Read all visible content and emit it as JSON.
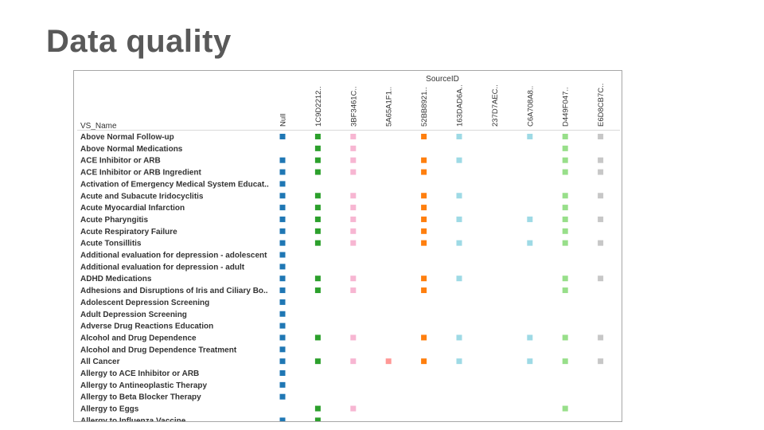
{
  "slide": {
    "title": "Data quality"
  },
  "chart_data": {
    "type": "heatmap",
    "column_header": "SourceID",
    "row_header": "VS_Name",
    "columns": [
      {
        "label": "Null",
        "color": "#1f77b4"
      },
      {
        "label": "1C9D2212..",
        "color": "#2ca02c"
      },
      {
        "label": "3BF3461C..",
        "color": "#f7b6d2"
      },
      {
        "label": "5A65A1F1..",
        "color": "#ff9896"
      },
      {
        "label": "52BB8921..",
        "color": "#ff7f0e"
      },
      {
        "label": "163DAD6A..",
        "color": "#9edae5"
      },
      {
        "label": "237D7AEC..",
        "color": "#c5b0d5"
      },
      {
        "label": "C6A708A8..",
        "color": "#9edae5"
      },
      {
        "label": "D449F047..",
        "color": "#98df8a"
      },
      {
        "label": "E6D8CB7C..",
        "color": "#c7c7c7"
      }
    ],
    "rows": [
      {
        "name": "Above Normal Follow-up",
        "present": [
          1,
          1,
          1,
          0,
          1,
          1,
          0,
          1,
          1,
          1
        ]
      },
      {
        "name": "Above Normal Medications",
        "present": [
          0,
          1,
          1,
          0,
          0,
          0,
          0,
          0,
          1,
          0
        ]
      },
      {
        "name": "ACE Inhibitor or ARB",
        "present": [
          1,
          1,
          1,
          0,
          1,
          1,
          0,
          0,
          1,
          1
        ]
      },
      {
        "name": "ACE Inhibitor or ARB Ingredient",
        "present": [
          1,
          1,
          1,
          0,
          1,
          0,
          0,
          0,
          1,
          1
        ]
      },
      {
        "name": "Activation of Emergency Medical System Educat..",
        "present": [
          1,
          0,
          0,
          0,
          0,
          0,
          0,
          0,
          0,
          0
        ]
      },
      {
        "name": "Acute and Subacute Iridocyclitis",
        "present": [
          1,
          1,
          1,
          0,
          1,
          1,
          0,
          0,
          1,
          1
        ]
      },
      {
        "name": "Acute Myocardial Infarction",
        "present": [
          1,
          1,
          1,
          0,
          1,
          0,
          0,
          0,
          1,
          0
        ]
      },
      {
        "name": "Acute Pharyngitis",
        "present": [
          1,
          1,
          1,
          0,
          1,
          1,
          0,
          1,
          1,
          1
        ]
      },
      {
        "name": "Acute Respiratory Failure",
        "present": [
          1,
          1,
          1,
          0,
          1,
          0,
          0,
          0,
          1,
          0
        ]
      },
      {
        "name": "Acute Tonsillitis",
        "present": [
          1,
          1,
          1,
          0,
          1,
          1,
          0,
          1,
          1,
          1
        ]
      },
      {
        "name": "Additional evaluation for depression - adolescent",
        "present": [
          1,
          0,
          0,
          0,
          0,
          0,
          0,
          0,
          0,
          0
        ]
      },
      {
        "name": "Additional evaluation for depression - adult",
        "present": [
          1,
          0,
          0,
          0,
          0,
          0,
          0,
          0,
          0,
          0
        ]
      },
      {
        "name": "ADHD Medications",
        "present": [
          1,
          1,
          1,
          0,
          1,
          1,
          0,
          0,
          1,
          1
        ]
      },
      {
        "name": "Adhesions and Disruptions of Iris and Ciliary Bo..",
        "present": [
          1,
          1,
          1,
          0,
          1,
          0,
          0,
          0,
          1,
          0
        ]
      },
      {
        "name": "Adolescent Depression Screening",
        "present": [
          1,
          0,
          0,
          0,
          0,
          0,
          0,
          0,
          0,
          0
        ]
      },
      {
        "name": "Adult Depression Screening",
        "present": [
          1,
          0,
          0,
          0,
          0,
          0,
          0,
          0,
          0,
          0
        ]
      },
      {
        "name": "Adverse Drug Reactions Education",
        "present": [
          1,
          0,
          0,
          0,
          0,
          0,
          0,
          0,
          0,
          0
        ]
      },
      {
        "name": "Alcohol and Drug Dependence",
        "present": [
          1,
          1,
          1,
          0,
          1,
          1,
          0,
          1,
          1,
          1
        ]
      },
      {
        "name": "Alcohol and Drug Dependence Treatment",
        "present": [
          1,
          0,
          0,
          0,
          0,
          0,
          0,
          0,
          0,
          0
        ]
      },
      {
        "name": "All Cancer",
        "present": [
          1,
          1,
          1,
          1,
          1,
          1,
          0,
          1,
          1,
          1
        ]
      },
      {
        "name": "Allergy to ACE Inhibitor or ARB",
        "present": [
          1,
          0,
          0,
          0,
          0,
          0,
          0,
          0,
          0,
          0
        ]
      },
      {
        "name": "Allergy to Antineoplastic Therapy",
        "present": [
          1,
          0,
          0,
          0,
          0,
          0,
          0,
          0,
          0,
          0
        ]
      },
      {
        "name": "Allergy to Beta Blocker Therapy",
        "present": [
          1,
          0,
          0,
          0,
          0,
          0,
          0,
          0,
          0,
          0
        ]
      },
      {
        "name": "Allergy to Eggs",
        "present": [
          0,
          1,
          1,
          0,
          0,
          0,
          0,
          0,
          1,
          0
        ]
      },
      {
        "name": "Allergy to Influenza Vaccine",
        "present": [
          1,
          1,
          0,
          0,
          0,
          0,
          0,
          0,
          0,
          0
        ]
      }
    ]
  }
}
